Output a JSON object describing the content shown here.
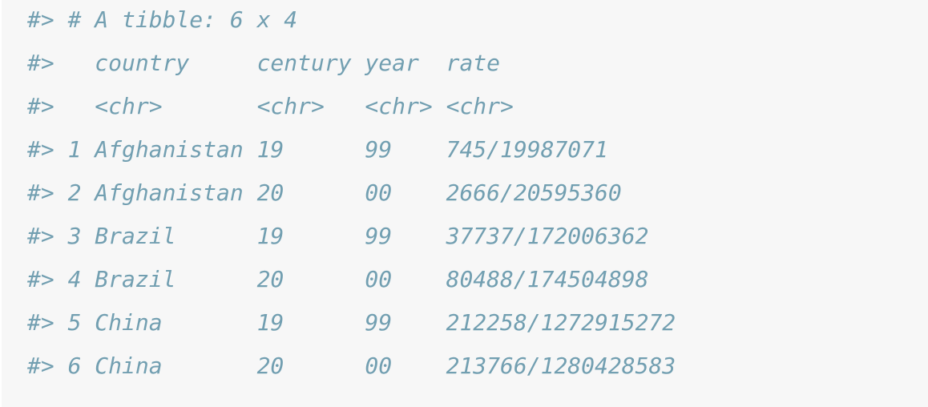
{
  "console": {
    "prompt": "#>",
    "lines": [
      "#> # A tibble: 6 x 4",
      "#>   country     century year  rate",
      "#>   <chr>       <chr>   <chr> <chr>",
      "#> 1 Afghanistan 19      99    745/19987071",
      "#> 2 Afghanistan 20      00    2666/20595360",
      "#> 3 Brazil      19      99    37737/172006362",
      "#> 4 Brazil      20      00    80488/174504898",
      "#> 5 China       19      99    212258/1272915272",
      "#> 6 China       20      00    213766/1280428583"
    ],
    "text_color": "#729fb1",
    "background_color": "#f7f7f7"
  }
}
